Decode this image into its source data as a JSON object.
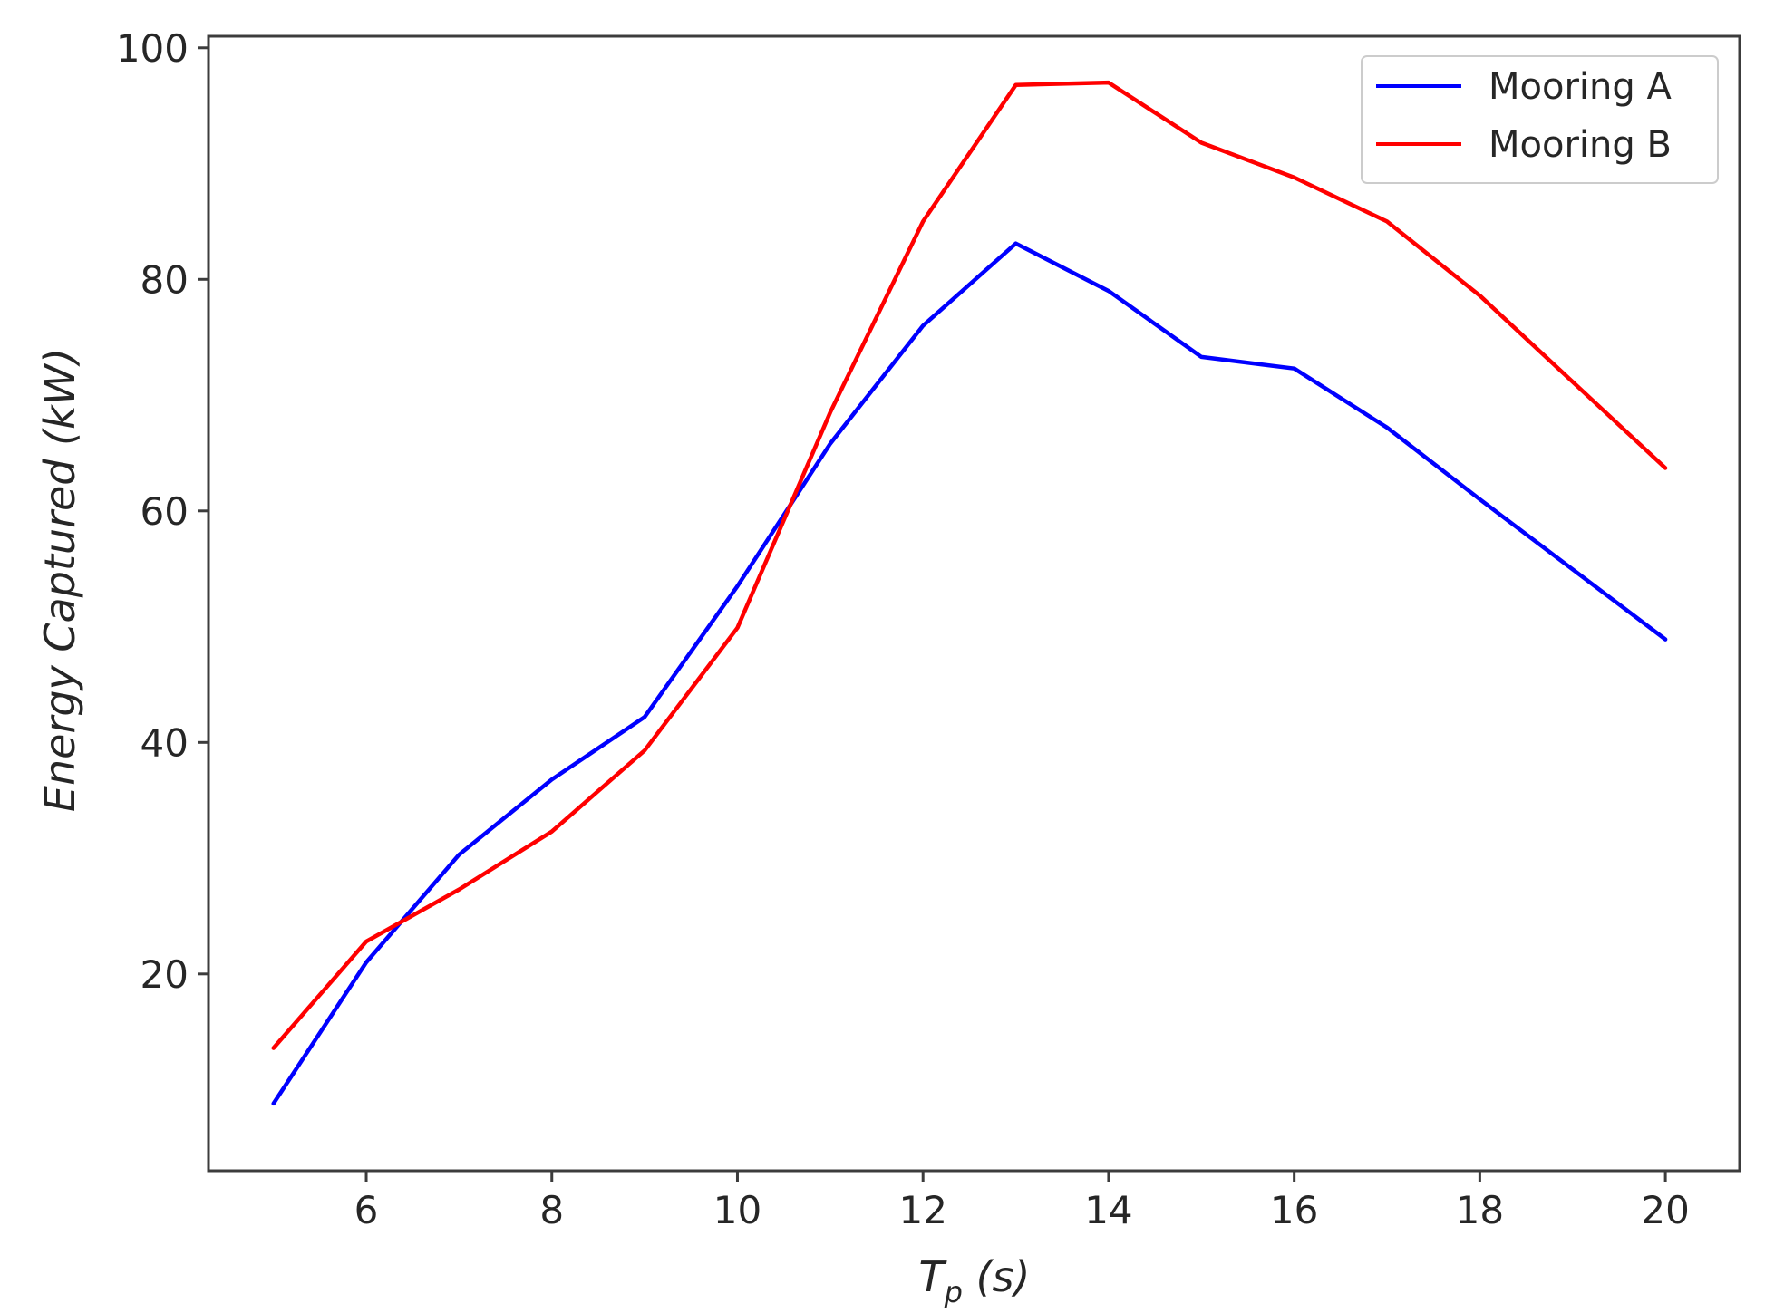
{
  "chart_data": {
    "type": "line",
    "xlabel": "T",
    "xlabel_sub": "p",
    "xlabel_unit": " (s)",
    "ylabel": "Energy Captured (kW)",
    "xlim": [
      4.3,
      20.8
    ],
    "ylim": [
      3,
      101
    ],
    "x_ticks": [
      6,
      8,
      10,
      12,
      14,
      16,
      18,
      20
    ],
    "y_ticks": [
      20,
      40,
      60,
      80,
      100
    ],
    "grid": false,
    "legend_position": "top-right",
    "x": [
      5,
      6,
      7,
      8,
      9,
      10,
      11,
      12,
      13,
      14,
      15,
      16,
      17,
      18,
      20
    ],
    "series": [
      {
        "name": "Mooring A",
        "color": "#0000ff",
        "values": [
          8.8,
          21.0,
          30.3,
          36.8,
          42.2,
          53.5,
          65.8,
          76.0,
          83.1,
          79.0,
          73.3,
          72.3,
          67.2,
          61.0,
          48.9
        ]
      },
      {
        "name": "Mooring B",
        "color": "#ff0000",
        "values": [
          13.6,
          22.8,
          27.3,
          32.3,
          39.3,
          49.9,
          68.5,
          85.0,
          96.8,
          97.0,
          91.8,
          88.8,
          85.0,
          78.6,
          63.7
        ]
      }
    ]
  }
}
